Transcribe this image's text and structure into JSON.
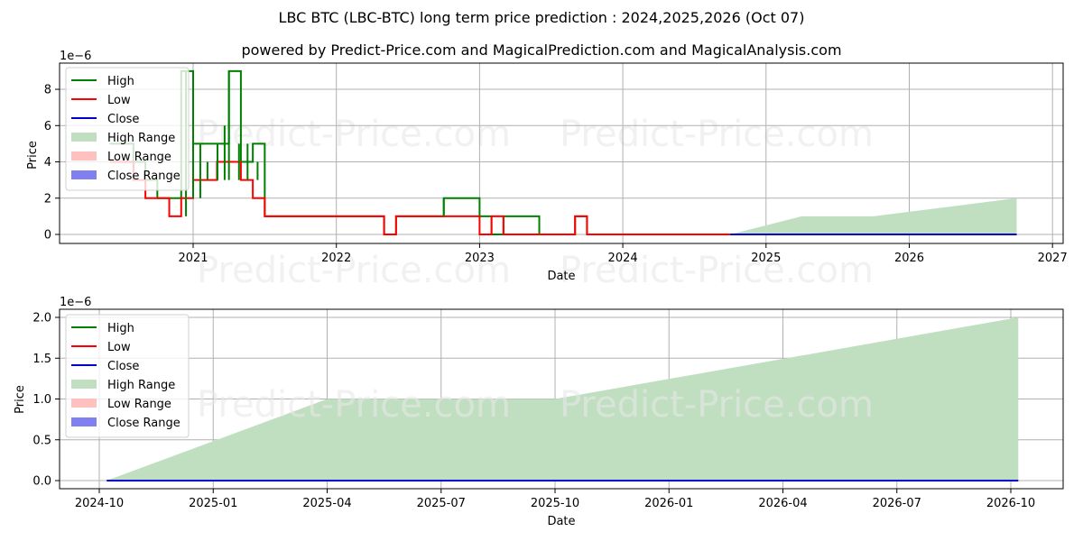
{
  "header": {
    "title": "LBC BTC (LBC-BTC) long term price prediction : 2024,2025,2026 (Oct 07)",
    "subtitle": "powered by Predict-Price.com and MagicalPrediction.com and MagicalAnalysis.com"
  },
  "watermark": "Predict-Price.com",
  "colors": {
    "high": "#008000",
    "low": "#ff0000",
    "close": "#0000cc",
    "high_range": "#c0dfc0",
    "low_range": "#ffc0c0",
    "close_range": "#8080f0",
    "grid": "#b0b0b0"
  },
  "legend": {
    "items": [
      {
        "label": "High",
        "kind": "line",
        "color": "#008000"
      },
      {
        "label": "Low",
        "kind": "line",
        "color": "#ff0000"
      },
      {
        "label": "Close",
        "kind": "line",
        "color": "#0000cc"
      },
      {
        "label": "High Range",
        "kind": "patch",
        "color": "#c0dfc0"
      },
      {
        "label": "Low Range",
        "kind": "patch",
        "color": "#ffc0c0"
      },
      {
        "label": "Close Range",
        "kind": "patch",
        "color": "#8080f0"
      }
    ]
  },
  "chart_data": [
    {
      "type": "line",
      "title": "LBC BTC (LBC-BTC) long term price prediction : 2024,2025,2026 (Oct 07)",
      "subtitle": "powered by Predict-Price.com and MagicalPrediction.com and MagicalAnalysis.com",
      "xlabel": "Date",
      "ylabel": "Price",
      "y_scale_label": "1e−6",
      "x_ticks": [
        "2021",
        "2022",
        "2023",
        "2024",
        "2025",
        "2026",
        "2027"
      ],
      "y_ticks": [
        "0",
        "2",
        "4",
        "6",
        "8"
      ],
      "ylim": [
        -0.45,
        9.5
      ],
      "grid": true,
      "legend_position": "upper left",
      "series": [
        {
          "name": "High",
          "x": [
            "2020-06",
            "2020-08",
            "2020-09",
            "2020-10",
            "2020-11",
            "2020-12",
            "2021-01",
            "2021-02",
            "2021-03",
            "2021-04",
            "2021-05",
            "2021-06",
            "2021-07",
            "2022-01",
            "2022-05",
            "2022-06",
            "2022-07",
            "2022-10",
            "2023-01",
            "2023-02",
            "2023-03",
            "2023-06",
            "2023-09",
            "2023-10",
            "2024-01",
            "2024-06",
            "2024-10"
          ],
          "values": [
            5,
            4,
            3,
            2,
            2,
            9,
            5,
            5,
            5,
            9,
            4,
            5,
            1,
            1,
            0,
            1,
            1,
            2,
            1,
            0,
            1,
            0,
            1,
            0,
            0,
            0,
            0
          ]
        },
        {
          "name": "Low",
          "x": [
            "2020-06",
            "2020-08",
            "2020-09",
            "2020-10",
            "2020-11",
            "2020-12",
            "2021-01",
            "2021-02",
            "2021-03",
            "2021-04",
            "2021-05",
            "2021-06",
            "2021-07",
            "2022-01",
            "2022-05",
            "2022-06",
            "2022-07",
            "2022-10",
            "2023-01",
            "2023-02",
            "2023-03",
            "2023-06",
            "2023-09",
            "2023-10",
            "2024-01",
            "2024-06",
            "2024-10"
          ],
          "values": [
            4,
            3,
            2,
            2,
            1,
            2,
            3,
            3,
            4,
            4,
            3,
            2,
            1,
            1,
            0,
            1,
            1,
            1,
            0,
            1,
            0,
            0,
            1,
            0,
            0,
            0,
            0
          ]
        },
        {
          "name": "Close",
          "x": [
            "2024-10",
            "2025-04",
            "2025-10",
            "2026-04",
            "2026-10"
          ],
          "values": [
            0,
            0,
            0,
            0,
            0
          ]
        },
        {
          "name": "High Range",
          "x": [
            "2024-10",
            "2025-04",
            "2025-10",
            "2026-04",
            "2026-10"
          ],
          "values": [
            0,
            1.0,
            1.0,
            1.5,
            2.0
          ]
        }
      ]
    },
    {
      "type": "area",
      "xlabel": "Date",
      "ylabel": "Price",
      "y_scale_label": "1e−6",
      "x_ticks": [
        "2024-10",
        "2025-01",
        "2025-04",
        "2025-07",
        "2025-10",
        "2026-01",
        "2026-04",
        "2026-07",
        "2026-10"
      ],
      "y_ticks": [
        "0.0",
        "0.5",
        "1.0",
        "1.5",
        "2.0"
      ],
      "ylim": [
        -0.1,
        2.1
      ],
      "grid": true,
      "legend_position": "upper left",
      "series": [
        {
          "name": "High Range",
          "x": [
            "2024-10-07",
            "2025-04-01",
            "2025-10-01",
            "2026-10-07"
          ],
          "values": [
            0.0,
            1.0,
            1.0,
            2.0
          ]
        },
        {
          "name": "Close",
          "x": [
            "2024-10-07",
            "2026-10-07"
          ],
          "values": [
            0.0,
            0.0
          ]
        }
      ]
    }
  ]
}
